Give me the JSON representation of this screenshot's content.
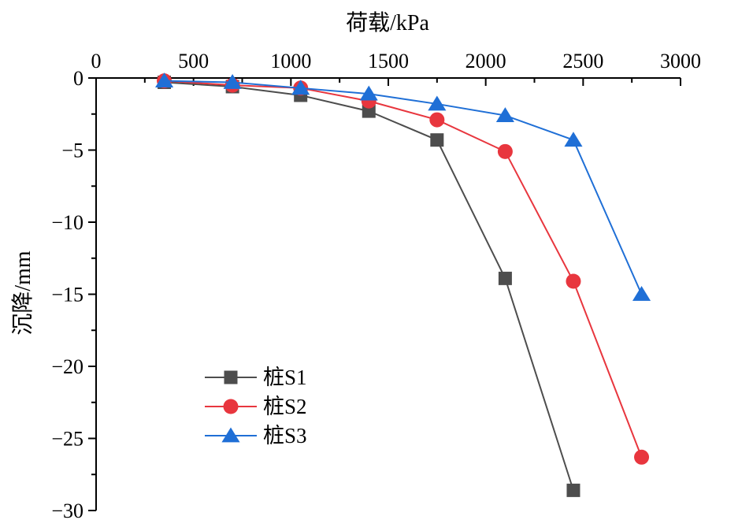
{
  "chart_data": {
    "type": "line",
    "title": "",
    "xlabel": "荷载/kPa",
    "ylabel": "沉降/mm",
    "xlim": [
      0,
      3000
    ],
    "ylim": [
      -30,
      0
    ],
    "x_axis_position": "top",
    "xticks": [
      0,
      500,
      1000,
      1500,
      2000,
      2500,
      3000
    ],
    "xtick_labels": [
      "0",
      "500",
      "1000",
      "1500",
      "2000",
      "2500",
      "3000"
    ],
    "yticks": [
      0,
      -5,
      -10,
      -15,
      -20,
      -25,
      -30
    ],
    "ytick_labels": [
      "0",
      "−5",
      "−10",
      "−15",
      "−20",
      "−25",
      "−30"
    ],
    "grid": false,
    "legend_position": "bottom-left",
    "series": [
      {
        "name": "桩S1",
        "color": "#4d4d4d",
        "marker": "square",
        "x": [
          350,
          700,
          1050,
          1400,
          1750,
          2100,
          2450
        ],
        "y": [
          -0.3,
          -0.6,
          -1.2,
          -2.3,
          -4.3,
          -13.9,
          -28.6
        ]
      },
      {
        "name": "桩S2",
        "color": "#e8363e",
        "marker": "circle",
        "x": [
          350,
          700,
          1050,
          1400,
          1750,
          2100,
          2450,
          2800
        ],
        "y": [
          -0.2,
          -0.5,
          -0.7,
          -1.6,
          -2.9,
          -5.1,
          -14.1,
          -26.3
        ]
      },
      {
        "name": "桩S3",
        "color": "#1f6fd6",
        "marker": "triangle",
        "x": [
          350,
          700,
          1050,
          1400,
          1750,
          2100,
          2450,
          2800
        ],
        "y": [
          -0.2,
          -0.3,
          -0.7,
          -1.1,
          -1.8,
          -2.6,
          -4.3,
          -15.0
        ]
      }
    ]
  }
}
